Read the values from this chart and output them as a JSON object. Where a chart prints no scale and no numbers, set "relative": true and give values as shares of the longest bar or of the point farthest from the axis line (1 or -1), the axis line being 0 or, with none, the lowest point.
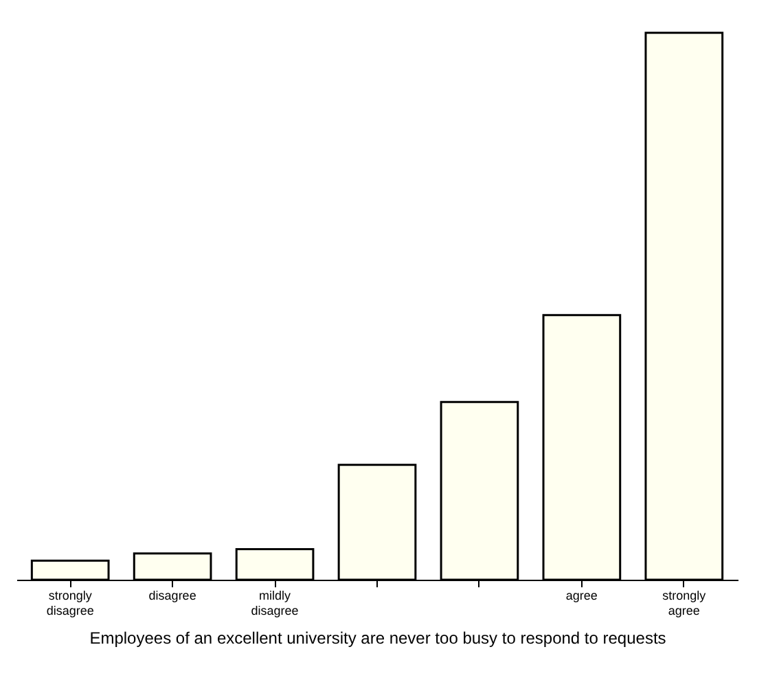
{
  "chart_data": {
    "type": "bar",
    "relative": true,
    "xlabel": "Employees of an excellent university are never too busy to respond to requests",
    "categories": [
      "strongly disagree",
      "disagree",
      "mildly disagree",
      null,
      null,
      "agree",
      "strongly agree"
    ],
    "values": [
      0.035,
      0.048,
      0.056,
      0.21,
      0.325,
      0.484,
      1
    ],
    "color": "#fffff0"
  }
}
